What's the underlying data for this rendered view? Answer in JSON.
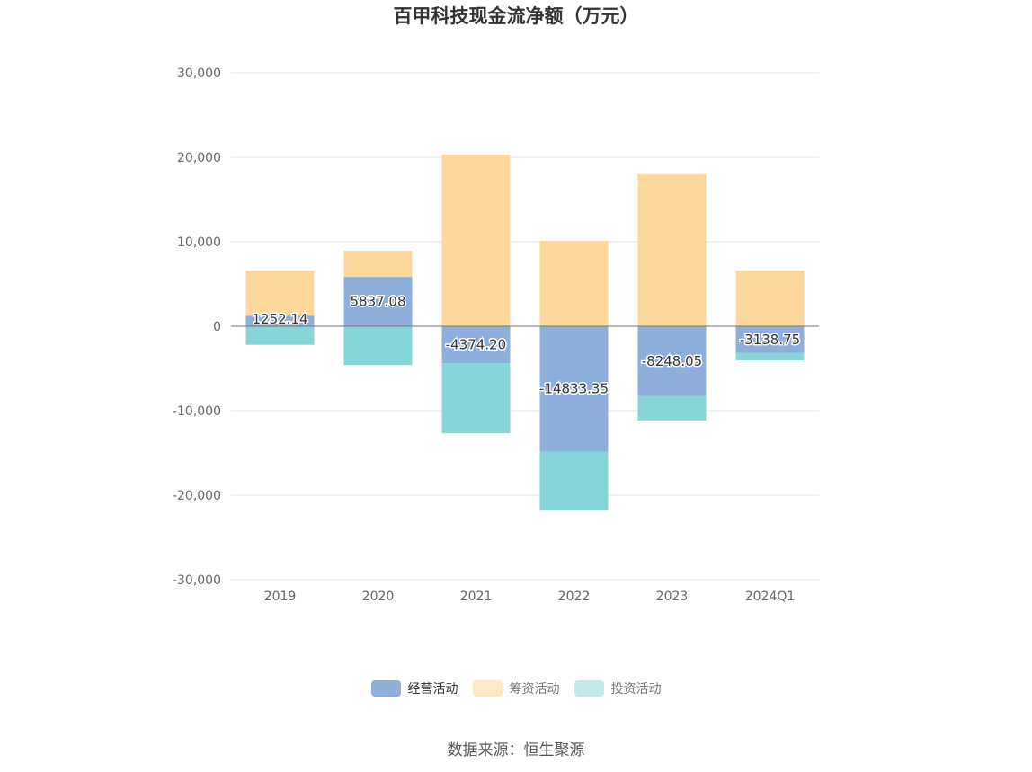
{
  "title": "百甲科技现金流净额（万元）",
  "source_text": "数据来源：恒生聚源",
  "colors": {
    "operating": "#8eaedb",
    "financing": "#fed89b",
    "investing": "#86d5d8",
    "legend_financing": "#fee9c7",
    "legend_investing": "#c4e9eb",
    "grid": "#e6e6e6",
    "axis": "#999999"
  },
  "chart_data": {
    "type": "bar",
    "stacked": true,
    "title": "百甲科技现金流净额（万元）",
    "categories": [
      "2019",
      "2020",
      "2021",
      "2022",
      "2023",
      "2024Q1"
    ],
    "ylim": [
      -30000,
      30000
    ],
    "yticks": [
      30000,
      20000,
      10000,
      0,
      -10000,
      -20000,
      -30000
    ],
    "ytick_labels": [
      "30,000",
      "20,000",
      "10,000",
      "0",
      "-10,000",
      "-20,000",
      "-30,000"
    ],
    "grid": true,
    "legend_position": "bottom",
    "series": [
      {
        "name": "经营活动",
        "values": [
          1252.14,
          5837.08,
          -4374.2,
          -14833.35,
          -8248.05,
          -3138.75
        ],
        "labels": [
          "1252.14",
          "5837.08",
          "-4374.20",
          "-14833.35",
          "-8248.05",
          "-3138.75"
        ]
      },
      {
        "name": "筹资活动",
        "values": [
          5350,
          3100,
          20300,
          10100,
          18000,
          6600
        ]
      },
      {
        "name": "投资活动",
        "values": [
          -2200,
          -4600,
          -8300,
          -7000,
          -2900,
          -900
        ]
      }
    ]
  }
}
